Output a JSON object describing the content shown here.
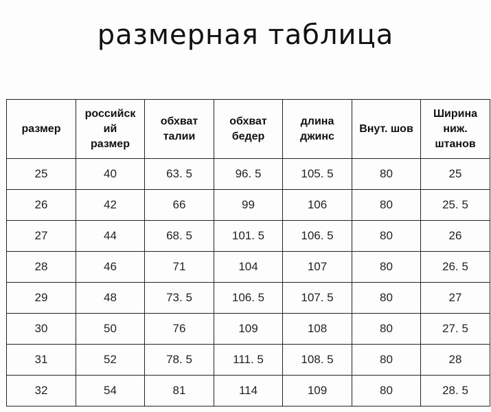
{
  "title": "размерная таблица",
  "table": {
    "headers": [
      "размер",
      "российск\nий\nразмер",
      "обхват\nталии",
      "обхват\nбедер",
      "длина\nджинс",
      "Внут. шов",
      "Ширина\nниж.\nштанов"
    ],
    "rows": [
      [
        "25",
        "40",
        "63. 5",
        "96. 5",
        "105. 5",
        "80",
        "25"
      ],
      [
        "26",
        "42",
        "66",
        "99",
        "106",
        "80",
        "25. 5"
      ],
      [
        "27",
        "44",
        "68. 5",
        "101. 5",
        "106. 5",
        "80",
        "26"
      ],
      [
        "28",
        "46",
        "71",
        "104",
        "107",
        "80",
        "26. 5"
      ],
      [
        "29",
        "48",
        "73. 5",
        "106. 5",
        "107. 5",
        "80",
        "27"
      ],
      [
        "30",
        "50",
        "76",
        "109",
        "108",
        "80",
        "27. 5"
      ],
      [
        "31",
        "52",
        "78. 5",
        "111. 5",
        "108. 5",
        "80",
        "28"
      ],
      [
        "32",
        "54",
        "81",
        "114",
        "109",
        "80",
        "28. 5"
      ]
    ]
  }
}
